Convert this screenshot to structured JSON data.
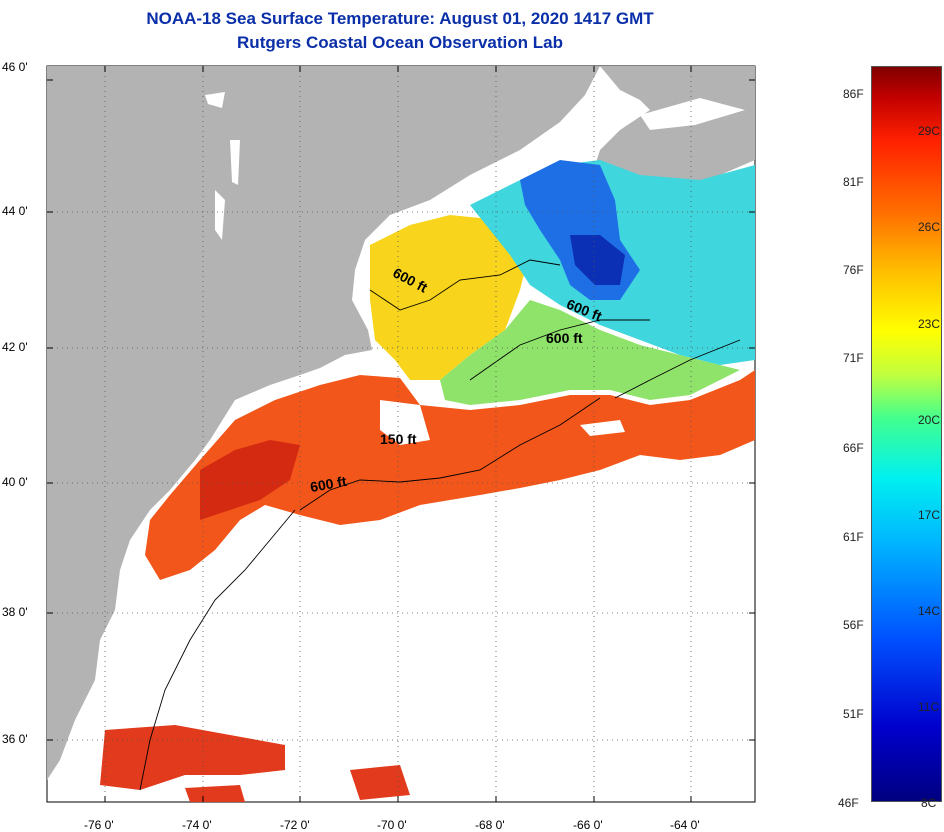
{
  "header": {
    "title": "NOAA-18 Sea Surface Temperature:  August 01, 2020 1417 GMT",
    "subtitle": "Rutgers Coastal Ocean Observation Lab"
  },
  "map": {
    "lat_labels": [
      "46 0'",
      "44 0'",
      "42 0'",
      "40 0'",
      "38 0'",
      "36 0'"
    ],
    "lon_labels": [
      "-76 0'",
      "-74 0'",
      "-72 0'",
      "-70 0'",
      "-68 0'",
      "-66 0'",
      "-64 0'"
    ],
    "depth_labels": [
      "600 ft",
      "600 ft",
      "600 ft",
      "150 ft",
      "600 ft"
    ]
  },
  "colorbar": {
    "fahrenheit": [
      "86F",
      "81F",
      "76F",
      "71F",
      "66F",
      "61F",
      "56F",
      "51F",
      "46F"
    ],
    "celsius": [
      "29C",
      "26C",
      "23C",
      "20C",
      "17C",
      "14C",
      "11C",
      "8C"
    ],
    "colors": [
      "#000080",
      "#0050ff",
      "#00f0f0",
      "#c0ff40",
      "#ffff00",
      "#ff7000",
      "#800000"
    ]
  },
  "colors": {
    "title": "#0a2fa8",
    "land": "#b3b3b3",
    "nodata": "#ffffff"
  }
}
